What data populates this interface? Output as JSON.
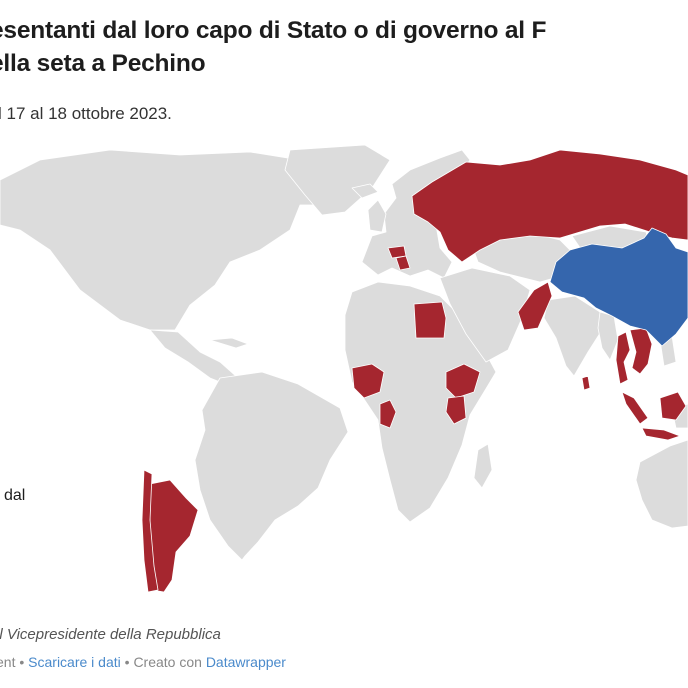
{
  "header": {
    "title_line1": "esentanti dal loro capo di Stato o di governo al F",
    "title_line2": "ella seta a Pechino",
    "subtitle": "l 17 al 18 ottobre 2023."
  },
  "legend": {
    "partial_label": "i dal"
  },
  "note": "il Vicepresidente della Repubblica",
  "footer": {
    "partial": "ent",
    "separator": "•",
    "download_link": "Scaricare i dati",
    "created_prefix": "Creato con",
    "creator_link": "Datawrapper"
  },
  "map": {
    "colors": {
      "represented": "#a5262f",
      "host": "#3566ad",
      "other": "#dcdcdc",
      "border": "#ffffff"
    },
    "host_country": "China",
    "represented_countries": [
      "Russia",
      "Serbia",
      "Hungary",
      "Egypt",
      "Pakistan",
      "Nigeria",
      "Republic of the Congo",
      "Ethiopia",
      "Kenya",
      "Argentina",
      "Chile",
      "Sri Lanka",
      "Indonesia",
      "Thailand",
      "Laos",
      "Vietnam",
      "Cambodia"
    ]
  }
}
